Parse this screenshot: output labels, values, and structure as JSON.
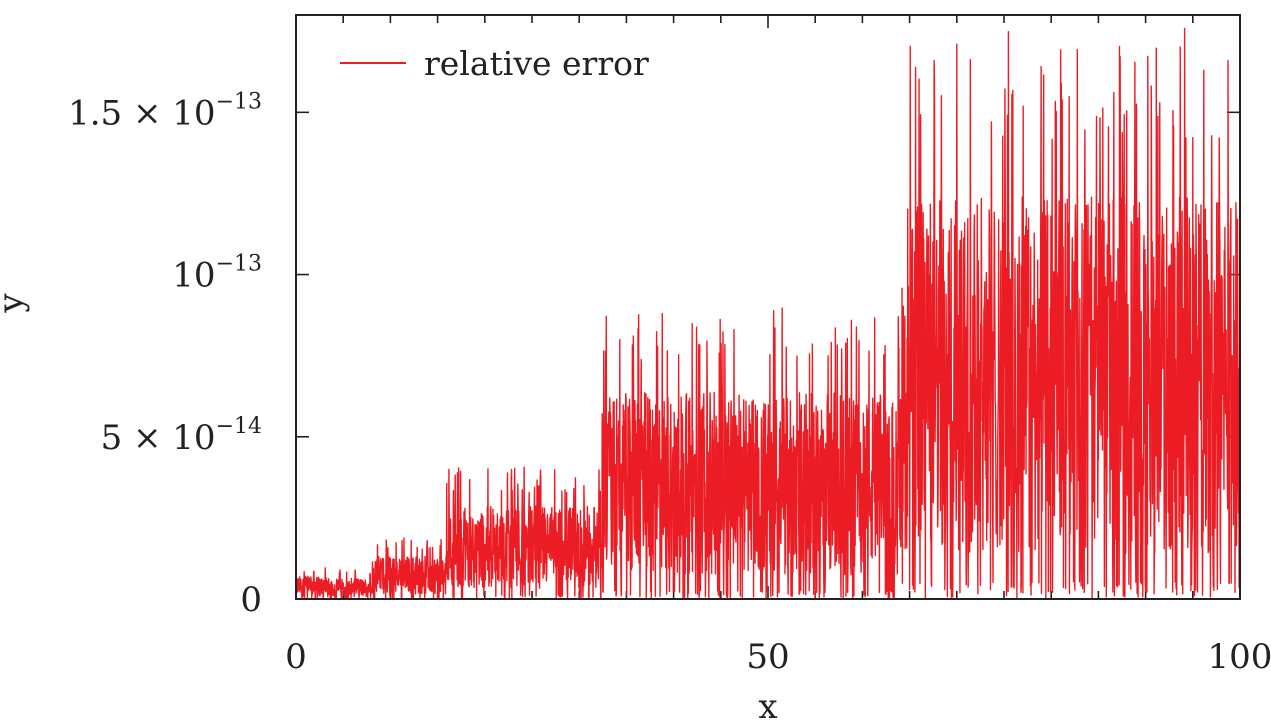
{
  "chart_data": {
    "type": "line",
    "title": "",
    "xlabel": "x",
    "ylabel": "y",
    "xlim": [
      0,
      100
    ],
    "ylim": [
      0,
      1.8e-13
    ],
    "grid": false,
    "legend_position": "top-left",
    "x_ticks": [
      {
        "value": 0,
        "label": "0"
      },
      {
        "value": 50,
        "label": "50"
      },
      {
        "value": 100,
        "label": "100"
      }
    ],
    "y_ticks": [
      {
        "value": 0,
        "mantissa": "0",
        "base": "",
        "exponent": ""
      },
      {
        "value": 5e-14,
        "mantissa": "5 × ",
        "base": "10",
        "exponent": "−14"
      },
      {
        "value": 1e-13,
        "mantissa": "",
        "base": "10",
        "exponent": "−13"
      },
      {
        "value": 1.5e-13,
        "mantissa": "1.5 × ",
        "base": "10",
        "exponent": "−13"
      }
    ],
    "series": [
      {
        "name": "relative error",
        "color": "#ec1c24",
        "segments": [
          {
            "x_start": 0,
            "x_end": 3.2,
            "peak": 1e-14
          },
          {
            "x_start": 3.2,
            "x_end": 7.8,
            "peak": 9e-15
          },
          {
            "x_start": 7.8,
            "x_end": 15.9,
            "peak": 1.9e-14
          },
          {
            "x_start": 15.9,
            "x_end": 32.4,
            "peak": 4.1e-14
          },
          {
            "x_start": 32.4,
            "x_end": 64.2,
            "peak": 9.1e-14
          },
          {
            "x_start": 64.2,
            "x_end": 100,
            "peak": 1.77e-13
          }
        ]
      }
    ]
  }
}
